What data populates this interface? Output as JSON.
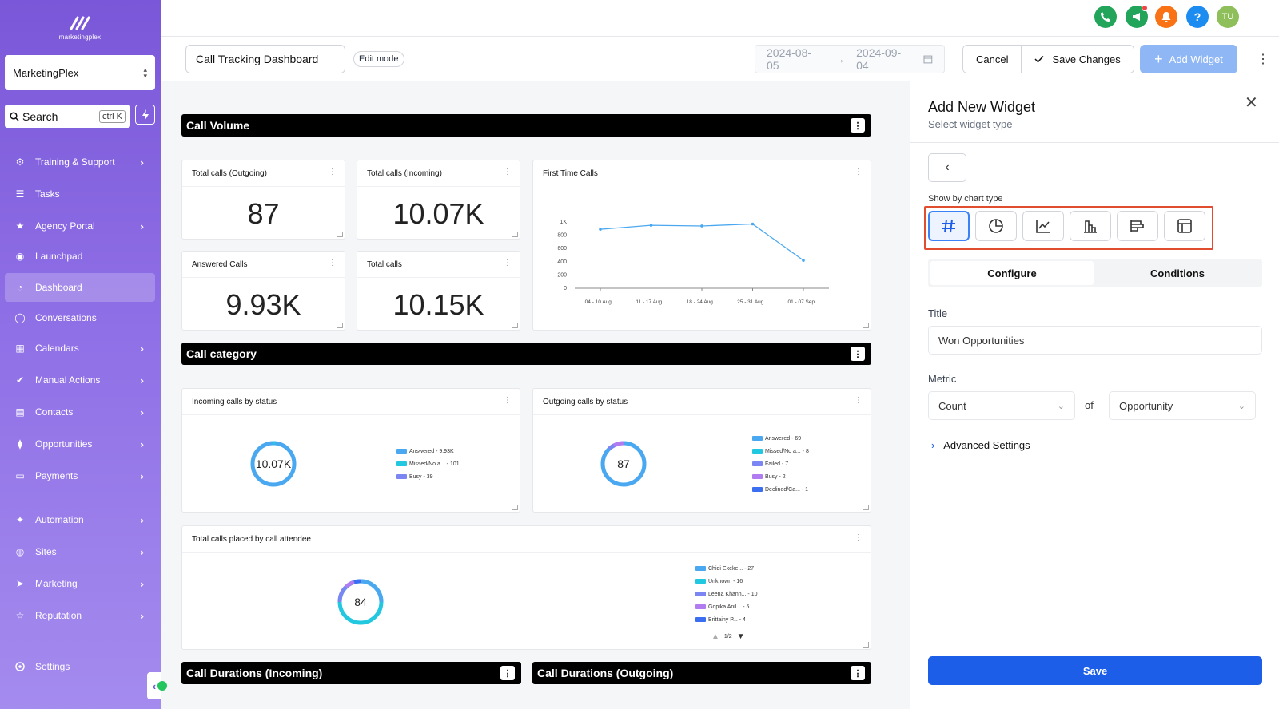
{
  "brand": {
    "logo_text": "marketingplex"
  },
  "account": {
    "name": "MarketingPlex"
  },
  "search": {
    "label": "Search",
    "shortcut": "ctrl K"
  },
  "sidebar": {
    "items": [
      {
        "label": "Training & Support",
        "icon": "gear-icon",
        "chevron": true
      },
      {
        "label": "Tasks",
        "icon": "list-icon",
        "chevron": false
      },
      {
        "label": "Agency Portal",
        "icon": "star-icon",
        "chevron": true
      },
      {
        "label": "Launchpad",
        "icon": "rocket-icon",
        "chevron": false
      },
      {
        "label": "Dashboard",
        "icon": "dashboard-icon",
        "chevron": false,
        "active": true
      },
      {
        "label": "Conversations",
        "icon": "chat-icon",
        "chevron": false
      },
      {
        "label": "Calendars",
        "icon": "calendar-icon",
        "chevron": true
      },
      {
        "label": "Manual Actions",
        "icon": "check-icon",
        "chevron": true
      },
      {
        "label": "Contacts",
        "icon": "contacts-icon",
        "chevron": true
      },
      {
        "label": "Opportunities",
        "icon": "funnel-icon",
        "chevron": true
      },
      {
        "label": "Payments",
        "icon": "card-icon",
        "chevron": true
      },
      {
        "label": "Automation",
        "icon": "wand-icon",
        "chevron": true
      },
      {
        "label": "Sites",
        "icon": "globe-icon",
        "chevron": true
      },
      {
        "label": "Marketing",
        "icon": "send-icon",
        "chevron": true
      },
      {
        "label": "Reputation",
        "icon": "star-outline-icon",
        "chevron": true
      }
    ],
    "settings_label": "Settings"
  },
  "topbar": {
    "avatar_initials": "TU",
    "help_glyph": "?"
  },
  "toolbar": {
    "dashboard_name": "Call Tracking Dashboard",
    "mode": "Edit mode",
    "date_start": "2024-08-05",
    "date_end": "2024-09-04",
    "cancel": "Cancel",
    "save_changes": "Save Changes",
    "add_widget": "Add Widget"
  },
  "sections": {
    "call_volume": "Call Volume",
    "call_category": "Call category",
    "durations_in": "Call Durations (Incoming)",
    "durations_out": "Call Durations (Outgoing)"
  },
  "stats": [
    {
      "title": "Total calls (Outgoing)",
      "value": "87"
    },
    {
      "title": "Total calls (Incoming)",
      "value": "10.07K"
    },
    {
      "title": "Answered Calls",
      "value": "9.93K"
    },
    {
      "title": "Total calls",
      "value": "10.15K"
    }
  ],
  "line_chart": {
    "title": "First Time Calls",
    "y_ticks": [
      "0",
      "200",
      "400",
      "600",
      "800",
      "1K"
    ],
    "x_labels": [
      "04 - 10 Aug...",
      "11 - 17 Aug...",
      "18 - 24 Aug...",
      "25 - 31 Aug...",
      "01 - 07 Sep..."
    ]
  },
  "donuts": {
    "incoming": {
      "title": "Incoming calls by status",
      "center": "10.07K",
      "legend": [
        "Answered - 9.93K",
        "Missed/No a... - 101",
        "Busy - 39"
      ]
    },
    "outgoing": {
      "title": "Outgoing calls by status",
      "center": "87",
      "legend": [
        "Answered - 69",
        "Missed/No a... - 8",
        "Failed - 7",
        "Busy - 2",
        "Declined/Ca... - 1"
      ]
    },
    "attendee": {
      "title": "Total calls placed by call attendee",
      "center": "84",
      "legend": [
        "Chidi Ekeke... - 27",
        "Unknown - 16",
        "Leena Khann... - 10",
        "Gopika Anil... - 5",
        "Brittainy P... - 4"
      ],
      "pager": "1/2"
    }
  },
  "chart_data": {
    "type": "line",
    "title": "First Time Calls",
    "categories": [
      "04 - 10 Aug...",
      "11 - 17 Aug...",
      "18 - 24 Aug...",
      "25 - 31 Aug...",
      "01 - 07 Sep..."
    ],
    "values": [
      890,
      950,
      940,
      970,
      420
    ],
    "ylim": [
      0,
      1000
    ],
    "xlabel": "",
    "ylabel": ""
  },
  "panel": {
    "title": "Add New Widget",
    "subtitle": "Select widget type",
    "show_by": "Show by chart type",
    "chart_types": [
      "number-icon",
      "pie-chart-icon",
      "line-chart-icon",
      "bar-chart-icon",
      "horizontal-bar-icon",
      "table-icon"
    ],
    "tabs": [
      "Configure",
      "Conditions"
    ],
    "title_label": "Title",
    "title_value": "Won Opportunities",
    "metric_label": "Metric",
    "metric_value": "Count",
    "of_label": "of",
    "object_value": "Opportunity",
    "advanced": "Advanced Settings",
    "save": "Save"
  },
  "colors": {
    "accent": "#1d5ee8",
    "sidebar": "#8f6fe6",
    "highlight": "#e04e2f"
  }
}
